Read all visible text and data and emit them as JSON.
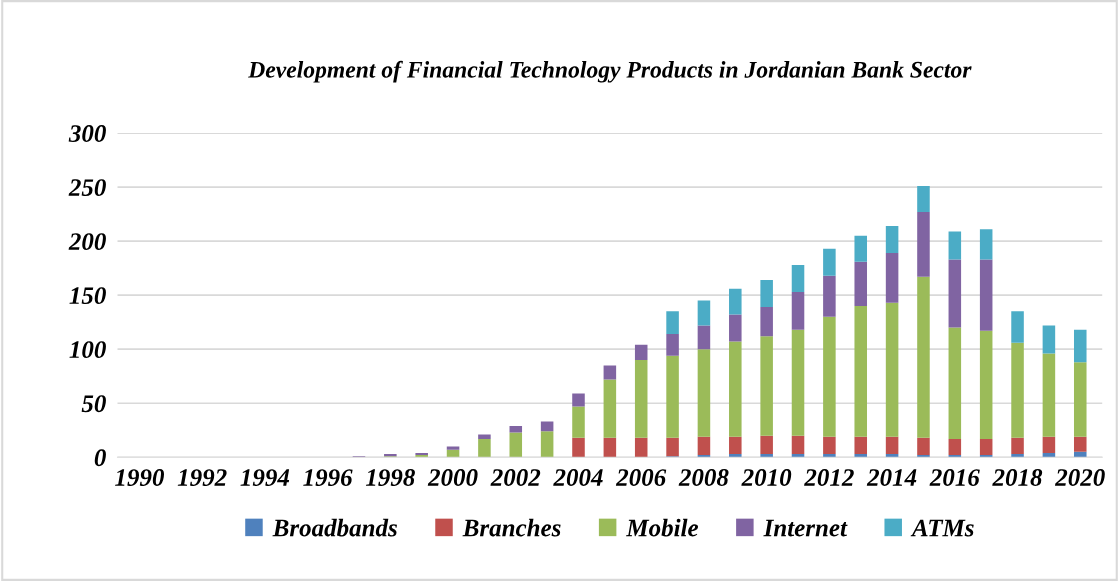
{
  "chart_data": {
    "type": "bar",
    "title": "Development of Financial Technology Products in Jordanian Bank Sector",
    "categories": [
      "1990",
      null,
      "1992",
      null,
      "1994",
      null,
      "1996",
      null,
      "1998",
      null,
      "2000",
      null,
      "2002",
      null,
      "2004",
      null,
      "2006",
      null,
      "2008",
      null,
      "2010",
      null,
      "2012",
      null,
      "2014",
      null,
      "2016",
      null,
      "2018",
      null,
      "2020"
    ],
    "stacked": true,
    "series": [
      {
        "name": "Broadbands",
        "color": "#4f81bd",
        "values": [
          0,
          0,
          0,
          0,
          0,
          0,
          0,
          0,
          0,
          0,
          0,
          0,
          0,
          0,
          0,
          0,
          0,
          1,
          2,
          3,
          3,
          3,
          3,
          3,
          3,
          2,
          2,
          2,
          3,
          4,
          5
        ]
      },
      {
        "name": "Branches",
        "color": "#c0504d",
        "values": [
          0,
          0,
          0,
          0,
          0,
          0,
          0,
          0,
          0,
          0,
          0,
          0,
          0,
          0,
          18,
          18,
          18,
          17,
          17,
          16,
          17,
          17,
          16,
          16,
          16,
          16,
          15,
          15,
          15,
          15,
          14
        ]
      },
      {
        "name": "Mobile",
        "color": "#9bbb59",
        "values": [
          0,
          0,
          0,
          0,
          0,
          0,
          0,
          0,
          1,
          2,
          7,
          17,
          23,
          24,
          29,
          54,
          72,
          76,
          81,
          88,
          92,
          98,
          111,
          121,
          124,
          149,
          103,
          100,
          88,
          77,
          69
        ]
      },
      {
        "name": "Internet",
        "color": "#8064a2",
        "values": [
          0,
          0,
          0,
          0,
          0,
          null,
          null,
          1,
          2,
          2,
          3,
          4,
          6,
          9,
          12,
          13,
          14,
          20,
          22,
          25,
          27,
          35,
          38,
          41,
          46,
          60,
          63,
          66,
          0,
          0,
          0
        ]
      },
      {
        "name": "ATMs",
        "color": "#4bacc6",
        "values": [
          0,
          0,
          0,
          0,
          0,
          0,
          0,
          0,
          0,
          0,
          0,
          0,
          0,
          0,
          0,
          0,
          0,
          21,
          23,
          24,
          25,
          25,
          25,
          24,
          25,
          24,
          26,
          28,
          29,
          26,
          30
        ]
      }
    ],
    "ylim": [
      0,
      300
    ],
    "yticks": [
      0,
      50,
      100,
      150,
      200,
      250,
      300
    ],
    "grid": "y",
    "legend": "bottom"
  }
}
